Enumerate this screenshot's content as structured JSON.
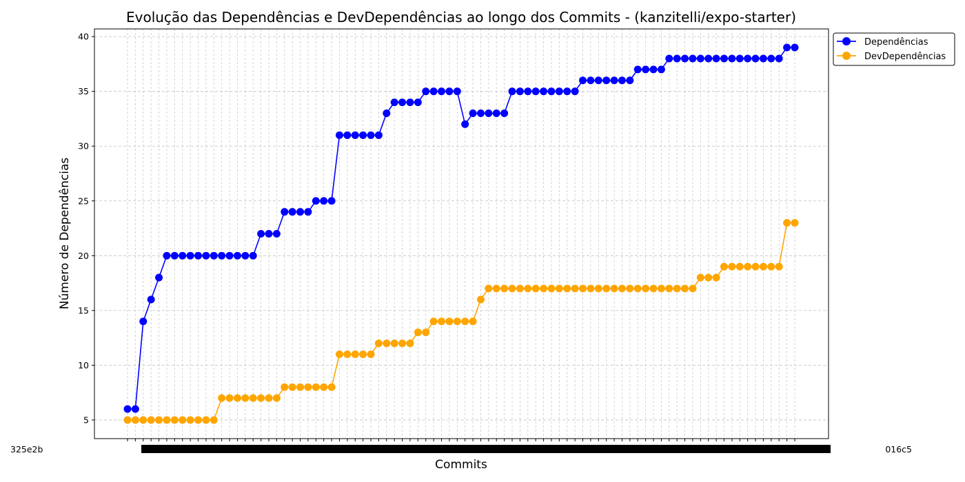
{
  "chart_data": {
    "type": "line",
    "title": "Evolução das Dependências e DevDependências ao longo dos Commits - (kanzitelli/expo-starter)",
    "xlabel": "Commits",
    "ylabel": "Número de Dependências",
    "ylim": [
      3.3,
      40.7
    ],
    "yticks": [
      5,
      10,
      15,
      20,
      25,
      30,
      35,
      40
    ],
    "grid": true,
    "legend_position": "outside-top-right",
    "x_tick_first": "325e2b",
    "x_tick_last": "016c5",
    "series": [
      {
        "name": "Dependências",
        "color": "#0000ff",
        "marker": "circle",
        "values": [
          6,
          6,
          14,
          16,
          18,
          20,
          20,
          20,
          20,
          20,
          20,
          20,
          20,
          20,
          20,
          20,
          20,
          22,
          22,
          22,
          24,
          24,
          24,
          24,
          25,
          25,
          25,
          31,
          31,
          31,
          31,
          31,
          31,
          33,
          34,
          34,
          34,
          34,
          35,
          35,
          35,
          35,
          35,
          32,
          33,
          33,
          33,
          33,
          33,
          35,
          35,
          35,
          35,
          35,
          35,
          35,
          35,
          35,
          36,
          36,
          36,
          36,
          36,
          36,
          36,
          37,
          37,
          37,
          37,
          38,
          38,
          38,
          38,
          38,
          38,
          38,
          38,
          38,
          38,
          38,
          38,
          38,
          38,
          38,
          39,
          39
        ]
      },
      {
        "name": "DevDependências",
        "color": "#ffa500",
        "marker": "circle",
        "values": [
          5,
          5,
          5,
          5,
          5,
          5,
          5,
          5,
          5,
          5,
          5,
          5,
          7,
          7,
          7,
          7,
          7,
          7,
          7,
          7,
          8,
          8,
          8,
          8,
          8,
          8,
          8,
          11,
          11,
          11,
          11,
          11,
          12,
          12,
          12,
          12,
          12,
          13,
          13,
          14,
          14,
          14,
          14,
          14,
          14,
          16,
          17,
          17,
          17,
          17,
          17,
          17,
          17,
          17,
          17,
          17,
          17,
          17,
          17,
          17,
          17,
          17,
          17,
          17,
          17,
          17,
          17,
          17,
          17,
          17,
          17,
          17,
          17,
          18,
          18,
          18,
          19,
          19,
          19,
          19,
          19,
          19,
          19,
          19,
          23,
          23
        ]
      }
    ]
  }
}
